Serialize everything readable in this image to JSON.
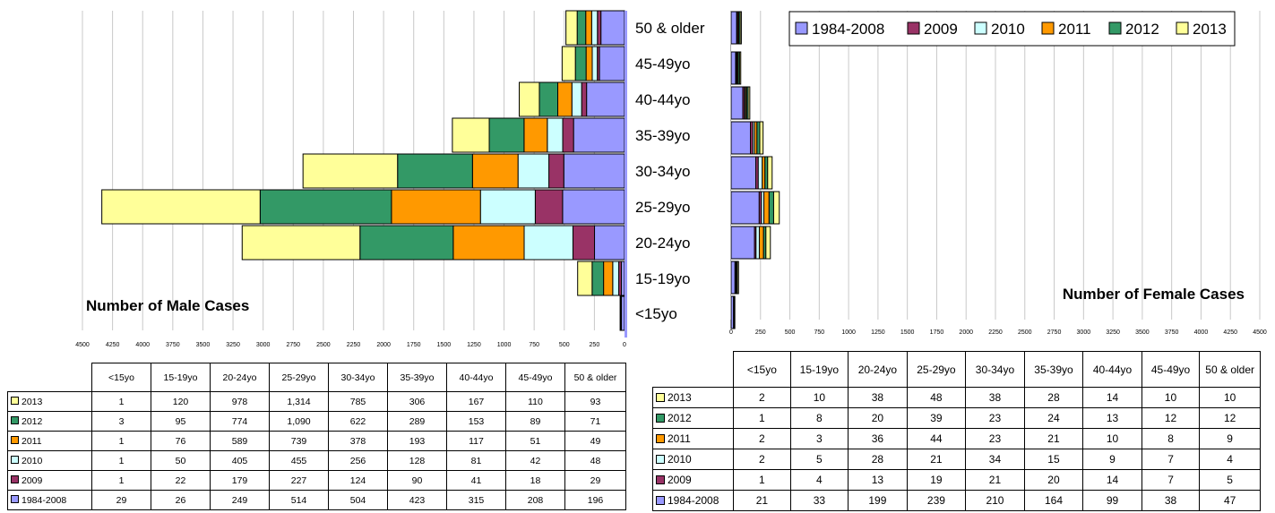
{
  "colors": {
    "1984-2008": "#9999ff",
    "2009": "#993366",
    "2010": "#ccffff",
    "2011": "#ff9900",
    "2012": "#339966",
    "2013": "#ffff99"
  },
  "legend": [
    "1984-2008",
    "2009",
    "2010",
    "2011",
    "2012",
    "2013"
  ],
  "table_rows": [
    "2013",
    "2012",
    "2011",
    "2010",
    "2009",
    "1984-2008"
  ],
  "male_title": "Number of Male Cases",
  "female_title": "Number of Female Cases",
  "chart_data": [
    {
      "type": "bar",
      "orientation": "horizontal",
      "stacked": true,
      "direction": "right-to-left",
      "title": "Number of Male Cases",
      "categories": [
        "<15yo",
        "15-19yo",
        "20-24yo",
        "25-29yo",
        "30-34yo",
        "35-39yo",
        "40-44yo",
        "45-49yo",
        "50 & older"
      ],
      "xlim": [
        0,
        4500
      ],
      "x_ticks": [
        "0",
        "250",
        "500",
        "750",
        "1000",
        "1250",
        "1500",
        "1750",
        "2000",
        "2250",
        "2500",
        "2750",
        "3000",
        "3250",
        "3500",
        "3750",
        "4000",
        "4250",
        "4500"
      ],
      "grid": true,
      "series": [
        {
          "name": "1984-2008",
          "values": [
            29,
            26,
            249,
            514,
            504,
            423,
            315,
            208,
            196
          ],
          "labels": [
            "29",
            "26",
            "249",
            "514",
            "504",
            "423",
            "315",
            "208",
            "196"
          ]
        },
        {
          "name": "2009",
          "values": [
            1,
            22,
            179,
            227,
            124,
            90,
            41,
            18,
            29
          ],
          "labels": [
            "1",
            "22",
            "179",
            "227",
            "124",
            "90",
            "41",
            "18",
            "29"
          ]
        },
        {
          "name": "2010",
          "values": [
            1,
            50,
            405,
            455,
            256,
            128,
            81,
            42,
            48
          ],
          "labels": [
            "1",
            "50",
            "405",
            "455",
            "256",
            "128",
            "81",
            "42",
            "48"
          ]
        },
        {
          "name": "2011",
          "values": [
            1,
            76,
            589,
            739,
            378,
            193,
            117,
            51,
            49
          ],
          "labels": [
            "1",
            "76",
            "589",
            "739",
            "378",
            "193",
            "117",
            "51",
            "49"
          ]
        },
        {
          "name": "2012",
          "values": [
            3,
            95,
            774,
            1090,
            622,
            289,
            153,
            89,
            71
          ],
          "labels": [
            "3",
            "95",
            "774",
            "1,090",
            "622",
            "289",
            "153",
            "89",
            "71"
          ]
        },
        {
          "name": "2013",
          "values": [
            1,
            120,
            978,
            1314,
            785,
            306,
            167,
            110,
            93
          ],
          "labels": [
            "1",
            "120",
            "978",
            "1,314",
            "785",
            "306",
            "167",
            "110",
            "93"
          ]
        }
      ]
    },
    {
      "type": "bar",
      "orientation": "horizontal",
      "stacked": true,
      "direction": "left-to-right",
      "title": "Number of Female Cases",
      "categories": [
        "<15yo",
        "15-19yo",
        "20-24yo",
        "25-29yo",
        "30-34yo",
        "35-39yo",
        "40-44yo",
        "45-49yo",
        "50 & older"
      ],
      "xlim": [
        0,
        4500
      ],
      "x_ticks": [
        "0",
        "250",
        "500",
        "750",
        "1000",
        "1250",
        "1500",
        "1750",
        "2000",
        "2250",
        "2500",
        "2750",
        "3000",
        "3250",
        "3500",
        "3750",
        "4000",
        "4250",
        "4500"
      ],
      "grid": true,
      "legend_position": "top-right",
      "series": [
        {
          "name": "1984-2008",
          "values": [
            21,
            33,
            199,
            239,
            210,
            164,
            99,
            38,
            47
          ],
          "labels": [
            "21",
            "33",
            "199",
            "239",
            "210",
            "164",
            "99",
            "38",
            "47"
          ]
        },
        {
          "name": "2009",
          "values": [
            1,
            4,
            13,
            19,
            21,
            20,
            14,
            7,
            5
          ],
          "labels": [
            "1",
            "4",
            "13",
            "19",
            "21",
            "20",
            "14",
            "7",
            "5"
          ]
        },
        {
          "name": "2010",
          "values": [
            2,
            5,
            28,
            21,
            34,
            15,
            9,
            7,
            4
          ],
          "labels": [
            "2",
            "5",
            "28",
            "21",
            "34",
            "15",
            "9",
            "7",
            "4"
          ]
        },
        {
          "name": "2011",
          "values": [
            2,
            3,
            36,
            44,
            23,
            21,
            10,
            8,
            9
          ],
          "labels": [
            "2",
            "3",
            "36",
            "44",
            "23",
            "21",
            "10",
            "8",
            "9"
          ]
        },
        {
          "name": "2012",
          "values": [
            1,
            8,
            20,
            39,
            23,
            24,
            13,
            12,
            12
          ],
          "labels": [
            "1",
            "8",
            "20",
            "39",
            "23",
            "24",
            "13",
            "12",
            "12"
          ]
        },
        {
          "name": "2013",
          "values": [
            2,
            10,
            38,
            48,
            38,
            28,
            14,
            10,
            10
          ],
          "labels": [
            "2",
            "10",
            "38",
            "48",
            "38",
            "28",
            "14",
            "10",
            "10"
          ]
        }
      ]
    }
  ]
}
